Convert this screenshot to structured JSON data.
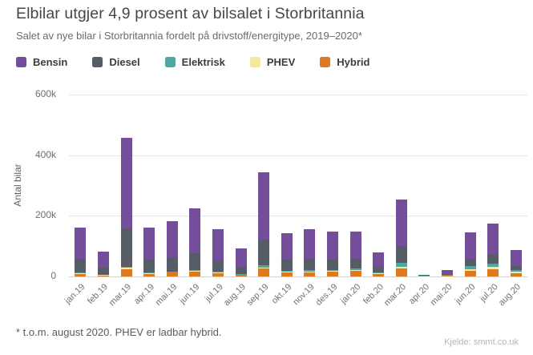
{
  "header": {
    "title": "Elbilar utgjer 4,9 prosent av bilsalet i Storbritannia",
    "subtitle": "Salet av nye bilar i Storbritannia fordelt på drivstoff/energitype, 2019–2020*"
  },
  "chart_data": {
    "type": "bar",
    "stacked": true,
    "stack_order_bottom_to_top": [
      "Hybrid",
      "PHEV",
      "Elektrisk",
      "Diesel",
      "Bensin"
    ],
    "title": "Elbilar utgjer 4,9 prosent av bilsalet i Storbritannia",
    "subtitle": "Salet av nye bilar i Storbritannia fordelt på drivstoff/energitype, 2019–2020*",
    "xlabel": "",
    "ylabel": "Antal bilar",
    "values_unit": "thousand vehicles (k)",
    "ylim": [
      0,
      615
    ],
    "grid": "horizontal",
    "legend_position": "top",
    "yticks": [
      {
        "label": "0",
        "value": 0
      },
      {
        "label": "200k",
        "value": 200
      },
      {
        "label": "400k",
        "value": 400
      },
      {
        "label": "600k",
        "value": 600
      }
    ],
    "categories": [
      "jan.19",
      "feb.19",
      "mar.19",
      "apr.19",
      "mai.19",
      "jun.19",
      "jul.19",
      "aug.19",
      "sep.19",
      "okt.19",
      "nov.19",
      "des.19",
      "jan.20",
      "feb.20",
      "mar.20",
      "apr.20",
      "mai.20",
      "jun.20",
      "jul.20",
      "aug.20"
    ],
    "series": [
      {
        "name": "Bensin",
        "color": "#744e9b",
        "values": [
          102,
          53,
          300,
          106,
          120,
          147,
          104,
          62,
          221,
          89,
          99,
          93,
          91,
          49,
          153,
          1.4,
          11,
          88,
          100,
          52
        ]
      },
      {
        "name": "Diesel",
        "color": "#575d66",
        "values": [
          47,
          23,
          125,
          42,
          47,
          55,
          38,
          22,
          86,
          35,
          37,
          35,
          32,
          18,
          57,
          1.3,
          4,
          24,
          32,
          14
        ]
      },
      {
        "name": "Elektrisk",
        "color": "#4fa8a0",
        "values": [
          1.9,
          1.5,
          4,
          1.5,
          2.2,
          2.5,
          2.3,
          3.1,
          7.7,
          3.2,
          4.7,
          3.7,
          4.1,
          2.5,
          11.7,
          1.4,
          2.4,
          8.9,
          12,
          6.5
        ]
      },
      {
        "name": "PHEV",
        "color": "#f2e99e",
        "values": [
          2,
          1.3,
          6,
          2.5,
          2.5,
          3,
          2.6,
          0.9,
          3.1,
          2.2,
          2.6,
          2.5,
          4.8,
          2.1,
          6.8,
          0.1,
          0.9,
          5.1,
          8,
          3.7
        ]
      },
      {
        "name": "Hybrid",
        "color": "#dd7a1f",
        "values": [
          8.1,
          3.2,
          23,
          9,
          12,
          16,
          10.3,
          4.6,
          25.5,
          13.9,
          13.3,
          14.8,
          17.4,
          8,
          26.2,
          0.1,
          1.9,
          19.4,
          23,
          11
        ]
      }
    ],
    "monthly_totals_k": [
      161.0,
      82.0,
      458.0,
      161.0,
      183.7,
      223.5,
      157.2,
      92.6,
      343.3,
      143.3,
      156.6,
      149.0,
      149.3,
      79.6,
      254.7,
      4.3,
      20.2,
      145.4,
      175.0,
      87.2
    ]
  },
  "footer": {
    "note": "* t.o.m. august 2020. PHEV er ladbar hybrid.",
    "source": "Kjelde: smmt.co.uk"
  }
}
